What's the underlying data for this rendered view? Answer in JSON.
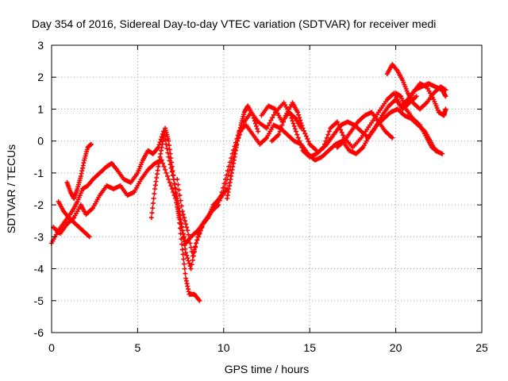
{
  "chart_data": {
    "type": "scatter",
    "title": "Day 354 of 2016, Sidereal Day-to-day VTEC variation (SDTVAR) for receiver medi",
    "xlabel": "GPS time / hours",
    "ylabel": "SDTVAR / TECUs",
    "xlim": [
      0,
      25
    ],
    "ylim": [
      -6,
      3
    ],
    "x_ticks": [
      0,
      5,
      10,
      15,
      20,
      25
    ],
    "y_ticks": [
      -6,
      -5,
      -4,
      -3,
      -2,
      -1,
      0,
      1,
      2,
      3
    ],
    "grid": true,
    "marker": "+",
    "series": [
      {
        "color": "#ff0000",
        "tracks": [
          [
            [
              0.0,
              -3.2
            ],
            [
              0.4,
              -2.8
            ],
            [
              0.8,
              -2.5
            ],
            [
              1.2,
              -2.2
            ],
            [
              1.5,
              -1.9
            ],
            [
              1.8,
              -1.5
            ],
            [
              2.1,
              -1.4
            ],
            [
              2.4,
              -1.2
            ],
            [
              2.8,
              -1.0
            ],
            [
              3.2,
              -0.8
            ],
            [
              3.5,
              -0.7
            ],
            [
              3.8,
              -0.9
            ],
            [
              4.2,
              -1.2
            ],
            [
              4.6,
              -1.3
            ],
            [
              5.0,
              -1.0
            ],
            [
              5.3,
              -0.6
            ],
            [
              5.6,
              -0.3
            ],
            [
              5.9,
              -0.4
            ],
            [
              6.2,
              -0.2
            ],
            [
              6.5,
              0.3
            ],
            [
              6.8,
              -0.5
            ],
            [
              7.1,
              -1.2
            ],
            [
              7.4,
              -2.1
            ],
            [
              7.6,
              -2.8
            ],
            [
              7.8,
              -3.5
            ],
            [
              8.1,
              -4.0
            ],
            [
              8.4,
              -3.2
            ],
            [
              8.8,
              -2.6
            ],
            [
              9.2,
              -2.3
            ],
            [
              9.6,
              -1.9
            ],
            [
              10.0,
              -1.6
            ],
            [
              10.4,
              -0.8
            ],
            [
              10.8,
              0.0
            ],
            [
              11.2,
              0.6
            ],
            [
              11.6,
              0.9
            ],
            [
              12.0,
              0.6
            ],
            [
              12.5,
              0.4
            ],
            [
              13.0,
              0.9
            ],
            [
              13.5,
              1.2
            ],
            [
              13.9,
              0.8
            ],
            [
              14.2,
              0.3
            ],
            [
              14.6,
              -0.3
            ],
            [
              15.0,
              -0.5
            ],
            [
              15.4,
              -0.4
            ],
            [
              15.8,
              -0.2
            ],
            [
              16.2,
              0.4
            ],
            [
              16.6,
              0.6
            ],
            [
              17.0,
              0.1
            ],
            [
              17.5,
              -0.2
            ],
            [
              18.0,
              0.1
            ],
            [
              18.5,
              0.5
            ],
            [
              19.0,
              0.9
            ],
            [
              19.5,
              1.3
            ],
            [
              19.9,
              1.5
            ],
            [
              20.3,
              1.1
            ],
            [
              20.7,
              1.3
            ],
            [
              21.1,
              1.6
            ],
            [
              21.5,
              1.7
            ],
            [
              21.9,
              1.8
            ],
            [
              22.3,
              1.7
            ],
            [
              22.7,
              1.6
            ],
            [
              22.9,
              1.4
            ]
          ],
          [
            [
              0.1,
              -2.7
            ],
            [
              0.5,
              -2.9
            ],
            [
              0.9,
              -2.6
            ],
            [
              1.3,
              -2.4
            ],
            [
              1.7,
              -2.0
            ],
            [
              2.0,
              -2.3
            ],
            [
              2.4,
              -2.1
            ],
            [
              2.8,
              -1.7
            ],
            [
              3.2,
              -1.4
            ],
            [
              3.6,
              -1.5
            ],
            [
              4.0,
              -1.4
            ],
            [
              4.4,
              -1.7
            ],
            [
              4.8,
              -1.6
            ],
            [
              5.2,
              -1.2
            ],
            [
              5.6,
              -0.9
            ],
            [
              6.0,
              -0.7
            ],
            [
              6.4,
              -0.6
            ],
            [
              6.8,
              -1.2
            ],
            [
              7.2,
              -1.8
            ],
            [
              7.5,
              -2.6
            ],
            [
              7.8,
              -3.2
            ],
            [
              8.1,
              -3.0
            ],
            [
              8.5,
              -2.8
            ],
            [
              8.9,
              -2.5
            ],
            [
              9.3,
              -2.2
            ],
            [
              9.7,
              -2.0
            ],
            [
              10.1,
              -1.2
            ],
            [
              10.5,
              -0.4
            ],
            [
              10.9,
              0.3
            ],
            [
              11.3,
              0.5
            ],
            [
              11.7,
              0.2
            ],
            [
              12.1,
              -0.1
            ],
            [
              12.5,
              0.1
            ],
            [
              12.9,
              0.5
            ],
            [
              13.3,
              0.4
            ],
            [
              13.7,
              0.2
            ],
            [
              14.1,
              0.0
            ],
            [
              14.5,
              -0.1
            ],
            [
              14.9,
              -0.4
            ],
            [
              15.3,
              -0.6
            ],
            [
              15.7,
              -0.5
            ],
            [
              16.1,
              -0.3
            ],
            [
              16.5,
              -0.1
            ],
            [
              16.9,
              0.0
            ],
            [
              17.3,
              -0.3
            ],
            [
              17.7,
              -0.4
            ],
            [
              18.1,
              -0.2
            ],
            [
              18.5,
              0.2
            ],
            [
              18.9,
              0.5
            ],
            [
              19.3,
              0.7
            ],
            [
              19.7,
              0.9
            ],
            [
              20.1,
              1.0
            ],
            [
              20.5,
              0.8
            ],
            [
              20.9,
              0.7
            ],
            [
              21.3,
              0.5
            ],
            [
              21.7,
              0.3
            ],
            [
              22.0,
              0.0
            ],
            [
              22.3,
              -0.3
            ],
            [
              22.7,
              -0.4
            ]
          ],
          [
            [
              0.9,
              -1.3
            ],
            [
              1.1,
              -1.6
            ],
            [
              1.3,
              -1.8
            ],
            [
              1.5,
              -1.5
            ],
            [
              1.7,
              -1.1
            ],
            [
              1.9,
              -0.6
            ],
            [
              2.1,
              -0.2
            ],
            [
              2.3,
              -0.1
            ]
          ],
          [
            [
              0.4,
              -1.9
            ],
            [
              0.7,
              -2.2
            ],
            [
              1.0,
              -2.4
            ],
            [
              1.4,
              -2.6
            ],
            [
              1.8,
              -2.8
            ],
            [
              2.2,
              -3.0
            ]
          ],
          [
            [
              5.8,
              -2.4
            ],
            [
              6.0,
              -1.5
            ],
            [
              6.2,
              -0.8
            ],
            [
              6.4,
              -0.2
            ],
            [
              6.6,
              0.4
            ],
            [
              6.8,
              0.0
            ],
            [
              7.0,
              -0.8
            ],
            [
              7.2,
              -1.6
            ],
            [
              7.4,
              -2.4
            ],
            [
              7.6,
              -3.4
            ],
            [
              7.8,
              -4.3
            ],
            [
              8.0,
              -4.8
            ],
            [
              8.3,
              -4.8
            ],
            [
              8.6,
              -5.0
            ]
          ],
          [
            [
              7.3,
              -1.2
            ],
            [
              7.6,
              -2.2
            ],
            [
              7.9,
              -2.8
            ],
            [
              8.2,
              -3.6
            ],
            [
              8.5,
              -3.0
            ],
            [
              8.8,
              -2.6
            ],
            [
              9.1,
              -2.4
            ],
            [
              9.4,
              -2.0
            ],
            [
              9.8,
              -1.8
            ],
            [
              10.2,
              -1.5
            ]
          ],
          [
            [
              10.2,
              -1.8
            ],
            [
              10.4,
              -1.2
            ],
            [
              10.6,
              -0.6
            ],
            [
              10.8,
              0.0
            ],
            [
              11.0,
              0.5
            ],
            [
              11.2,
              0.9
            ],
            [
              11.4,
              1.1
            ],
            [
              11.7,
              0.8
            ],
            [
              12.0,
              0.3
            ]
          ],
          [
            [
              12.2,
              0.8
            ],
            [
              12.6,
              1.1
            ],
            [
              13.0,
              1.0
            ],
            [
              13.4,
              0.6
            ],
            [
              13.8,
              0.9
            ],
            [
              14.2,
              0.7
            ],
            [
              14.5,
              0.4
            ]
          ],
          [
            [
              12.8,
              0.0
            ],
            [
              13.2,
              0.2
            ],
            [
              13.6,
              0.8
            ],
            [
              14.0,
              1.2
            ],
            [
              14.3,
              0.9
            ],
            [
              14.6,
              0.4
            ],
            [
              15.0,
              -0.1
            ],
            [
              15.4,
              -0.3
            ]
          ],
          [
            [
              15.6,
              -0.3
            ],
            [
              16.0,
              -0.1
            ],
            [
              16.4,
              0.2
            ],
            [
              16.8,
              0.5
            ],
            [
              17.2,
              0.6
            ],
            [
              17.6,
              0.5
            ],
            [
              18.0,
              0.3
            ],
            [
              18.4,
              0.1
            ],
            [
              18.8,
              0.4
            ],
            [
              19.2,
              0.8
            ],
            [
              19.6,
              1.1
            ],
            [
              20.0,
              1.3
            ],
            [
              20.4,
              1.0
            ],
            [
              20.8,
              1.2
            ],
            [
              21.2,
              1.4
            ]
          ],
          [
            [
              16.6,
              -0.2
            ],
            [
              17.0,
              0.0
            ],
            [
              17.4,
              0.3
            ],
            [
              17.8,
              0.6
            ],
            [
              18.2,
              0.8
            ],
            [
              18.6,
              0.9
            ],
            [
              19.0,
              0.6
            ],
            [
              19.4,
              0.3
            ],
            [
              19.8,
              0.1
            ]
          ],
          [
            [
              19.5,
              2.1
            ],
            [
              19.8,
              2.4
            ],
            [
              20.1,
              2.2
            ],
            [
              20.4,
              1.9
            ],
            [
              20.7,
              1.5
            ],
            [
              21.0,
              1.2
            ],
            [
              21.4,
              1.0
            ],
            [
              21.8,
              1.2
            ],
            [
              22.2,
              1.5
            ],
            [
              22.6,
              1.7
            ],
            [
              22.9,
              1.6
            ]
          ],
          [
            [
              20.6,
              1.1
            ],
            [
              21.0,
              1.5
            ],
            [
              21.4,
              1.8
            ],
            [
              21.8,
              1.7
            ],
            [
              22.2,
              1.3
            ],
            [
              22.5,
              0.9
            ],
            [
              22.8,
              0.8
            ],
            [
              22.9,
              1.0
            ]
          ],
          [
            [
              20.0,
              1.5
            ],
            [
              20.3,
              1.4
            ],
            [
              20.6,
              1.0
            ],
            [
              21.0,
              0.7
            ],
            [
              21.4,
              0.5
            ],
            [
              21.8,
              0.1
            ],
            [
              22.1,
              -0.2
            ],
            [
              22.4,
              -0.3
            ]
          ]
        ]
      }
    ]
  }
}
